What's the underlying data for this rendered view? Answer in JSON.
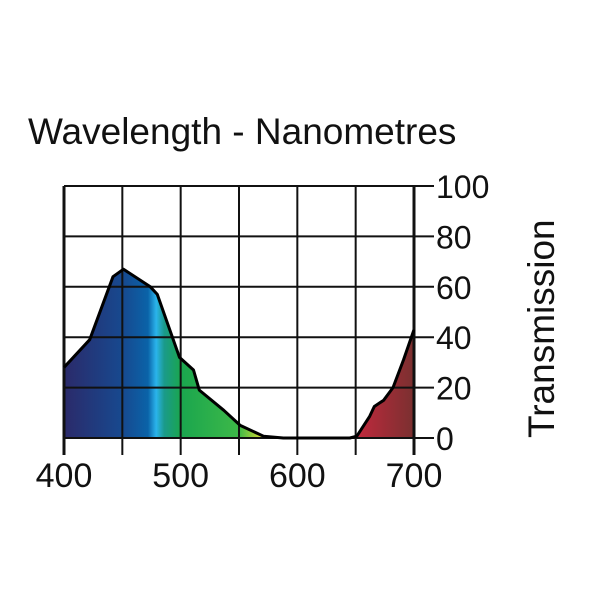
{
  "chart_data": {
    "type": "area",
    "title": "Wavelength - Nanometres",
    "xlabel": "Wavelength - Nanometres",
    "ylabel": "Transmission",
    "xlim": [
      400,
      700
    ],
    "ylim": [
      0,
      100
    ],
    "x_ticks": [
      400,
      500,
      600,
      700
    ],
    "x_grid": [
      400,
      450,
      500,
      550,
      600,
      650,
      700
    ],
    "y_ticks": [
      0,
      20,
      40,
      60,
      80,
      100
    ],
    "grid": true,
    "series": [
      {
        "name": "Transmission",
        "x": [
          400,
          422,
          442,
          451,
          474,
          480,
          499,
          511,
          516,
          537,
          551,
          571,
          588,
          645,
          651,
          662,
          666,
          674,
          682,
          691,
          700
        ],
        "y": [
          28,
          39,
          64,
          67,
          60,
          57,
          32,
          27,
          19,
          11,
          5,
          0.7,
          0,
          0,
          0.7,
          8.6,
          12.5,
          15,
          20,
          31,
          43
        ]
      }
    ],
    "gradient_stops": [
      {
        "wavelength": 400,
        "color": "#2b2a6a"
      },
      {
        "wavelength": 450,
        "color": "#17498f"
      },
      {
        "wavelength": 472,
        "color": "#0a63a8"
      },
      {
        "wavelength": 479,
        "color": "#2ab4ec"
      },
      {
        "wavelength": 486,
        "color": "#1a9a8a"
      },
      {
        "wavelength": 500,
        "color": "#1aa64e"
      },
      {
        "wavelength": 550,
        "color": "#3db848"
      },
      {
        "wavelength": 572,
        "color": "#e8e030"
      },
      {
        "wavelength": 600,
        "color": "#e8e030"
      },
      {
        "wavelength": 645,
        "color": "#c8283e"
      },
      {
        "wavelength": 700,
        "color": "#7a3030"
      }
    ]
  }
}
